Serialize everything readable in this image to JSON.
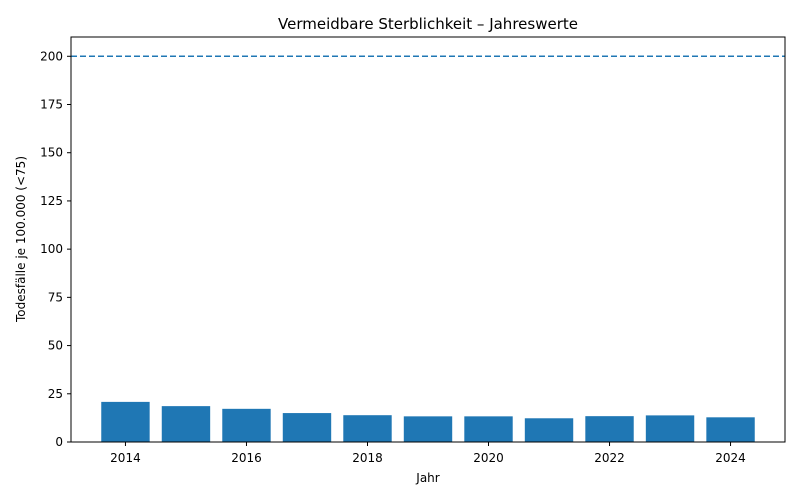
{
  "chart_data": {
    "type": "bar",
    "title": "Vermeidbare Sterblichkeit – Jahreswerte",
    "xlabel": "Jahr",
    "ylabel": "Todesfälle je 100.000 (<75)",
    "x": [
      2014,
      2015,
      2016,
      2017,
      2018,
      2019,
      2020,
      2021,
      2022,
      2023,
      2024
    ],
    "values": [
      20.8,
      18.6,
      17.2,
      15.0,
      13.9,
      13.3,
      13.3,
      12.3,
      13.4,
      13.8,
      12.8
    ],
    "xlim": [
      2013.1,
      2024.9
    ],
    "ylim": [
      0,
      210
    ],
    "xticks": [
      2014,
      2016,
      2018,
      2020,
      2022,
      2024
    ],
    "yticks": [
      0,
      25,
      50,
      75,
      100,
      125,
      150,
      175,
      200
    ],
    "reference_line": {
      "value": 200,
      "style": "dashed"
    },
    "grid": false,
    "colors": {
      "bar": "#1f77b4",
      "reference_line": "#1f77b4"
    }
  }
}
